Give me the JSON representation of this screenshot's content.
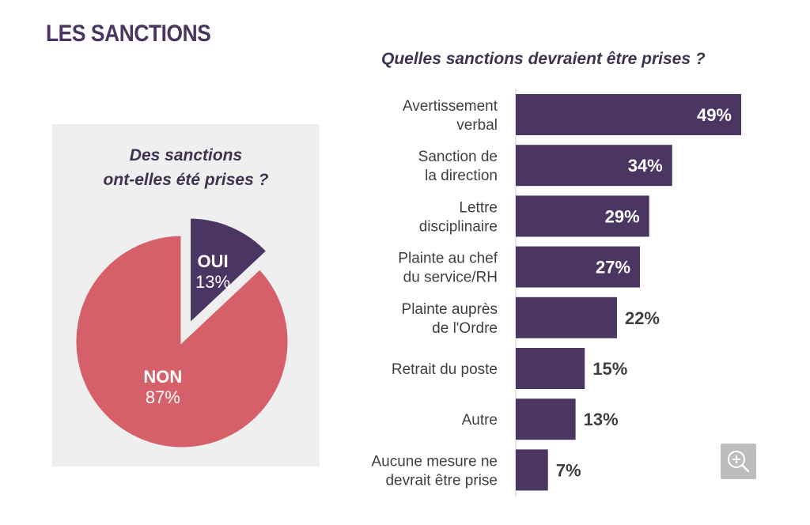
{
  "page": {
    "title": "LES SANCTIONS"
  },
  "chart_data": [
    {
      "type": "pie",
      "title_lines": [
        "Des sanctions",
        "ont-elles été prises ?"
      ],
      "slices": [
        {
          "name": "OUI",
          "value": 13,
          "label": "13%",
          "color": "#4b3562",
          "exploded": true
        },
        {
          "name": "NON",
          "value": 87,
          "label": "87%",
          "color": "#d5606a",
          "exploded": false
        }
      ]
    },
    {
      "type": "bar",
      "orientation": "horizontal",
      "title": "Quelles sanctions devraient être prises ?",
      "xlabel": "",
      "ylabel": "",
      "xlim": [
        0,
        49
      ],
      "bar_color": "#4b3562",
      "categories": [
        [
          "Avertissement",
          "verbal"
        ],
        [
          "Sanction de",
          "la direction"
        ],
        [
          "Lettre",
          "disciplinaire"
        ],
        [
          "Plainte au chef",
          "du service/RH"
        ],
        [
          "Plainte auprès",
          "de l'Ordre"
        ],
        [
          "Retrait du poste"
        ],
        [
          "Autre"
        ],
        [
          "Aucune mesure ne",
          "devrait être prise"
        ]
      ],
      "values": [
        49,
        34,
        29,
        27,
        22,
        15,
        13,
        7
      ],
      "value_labels": [
        "49%",
        "34%",
        "29%",
        "27%",
        "22%",
        "15%",
        "13%",
        "7%"
      ]
    }
  ],
  "toolbar": {
    "zoom_icon": "zoom-in-icon"
  }
}
